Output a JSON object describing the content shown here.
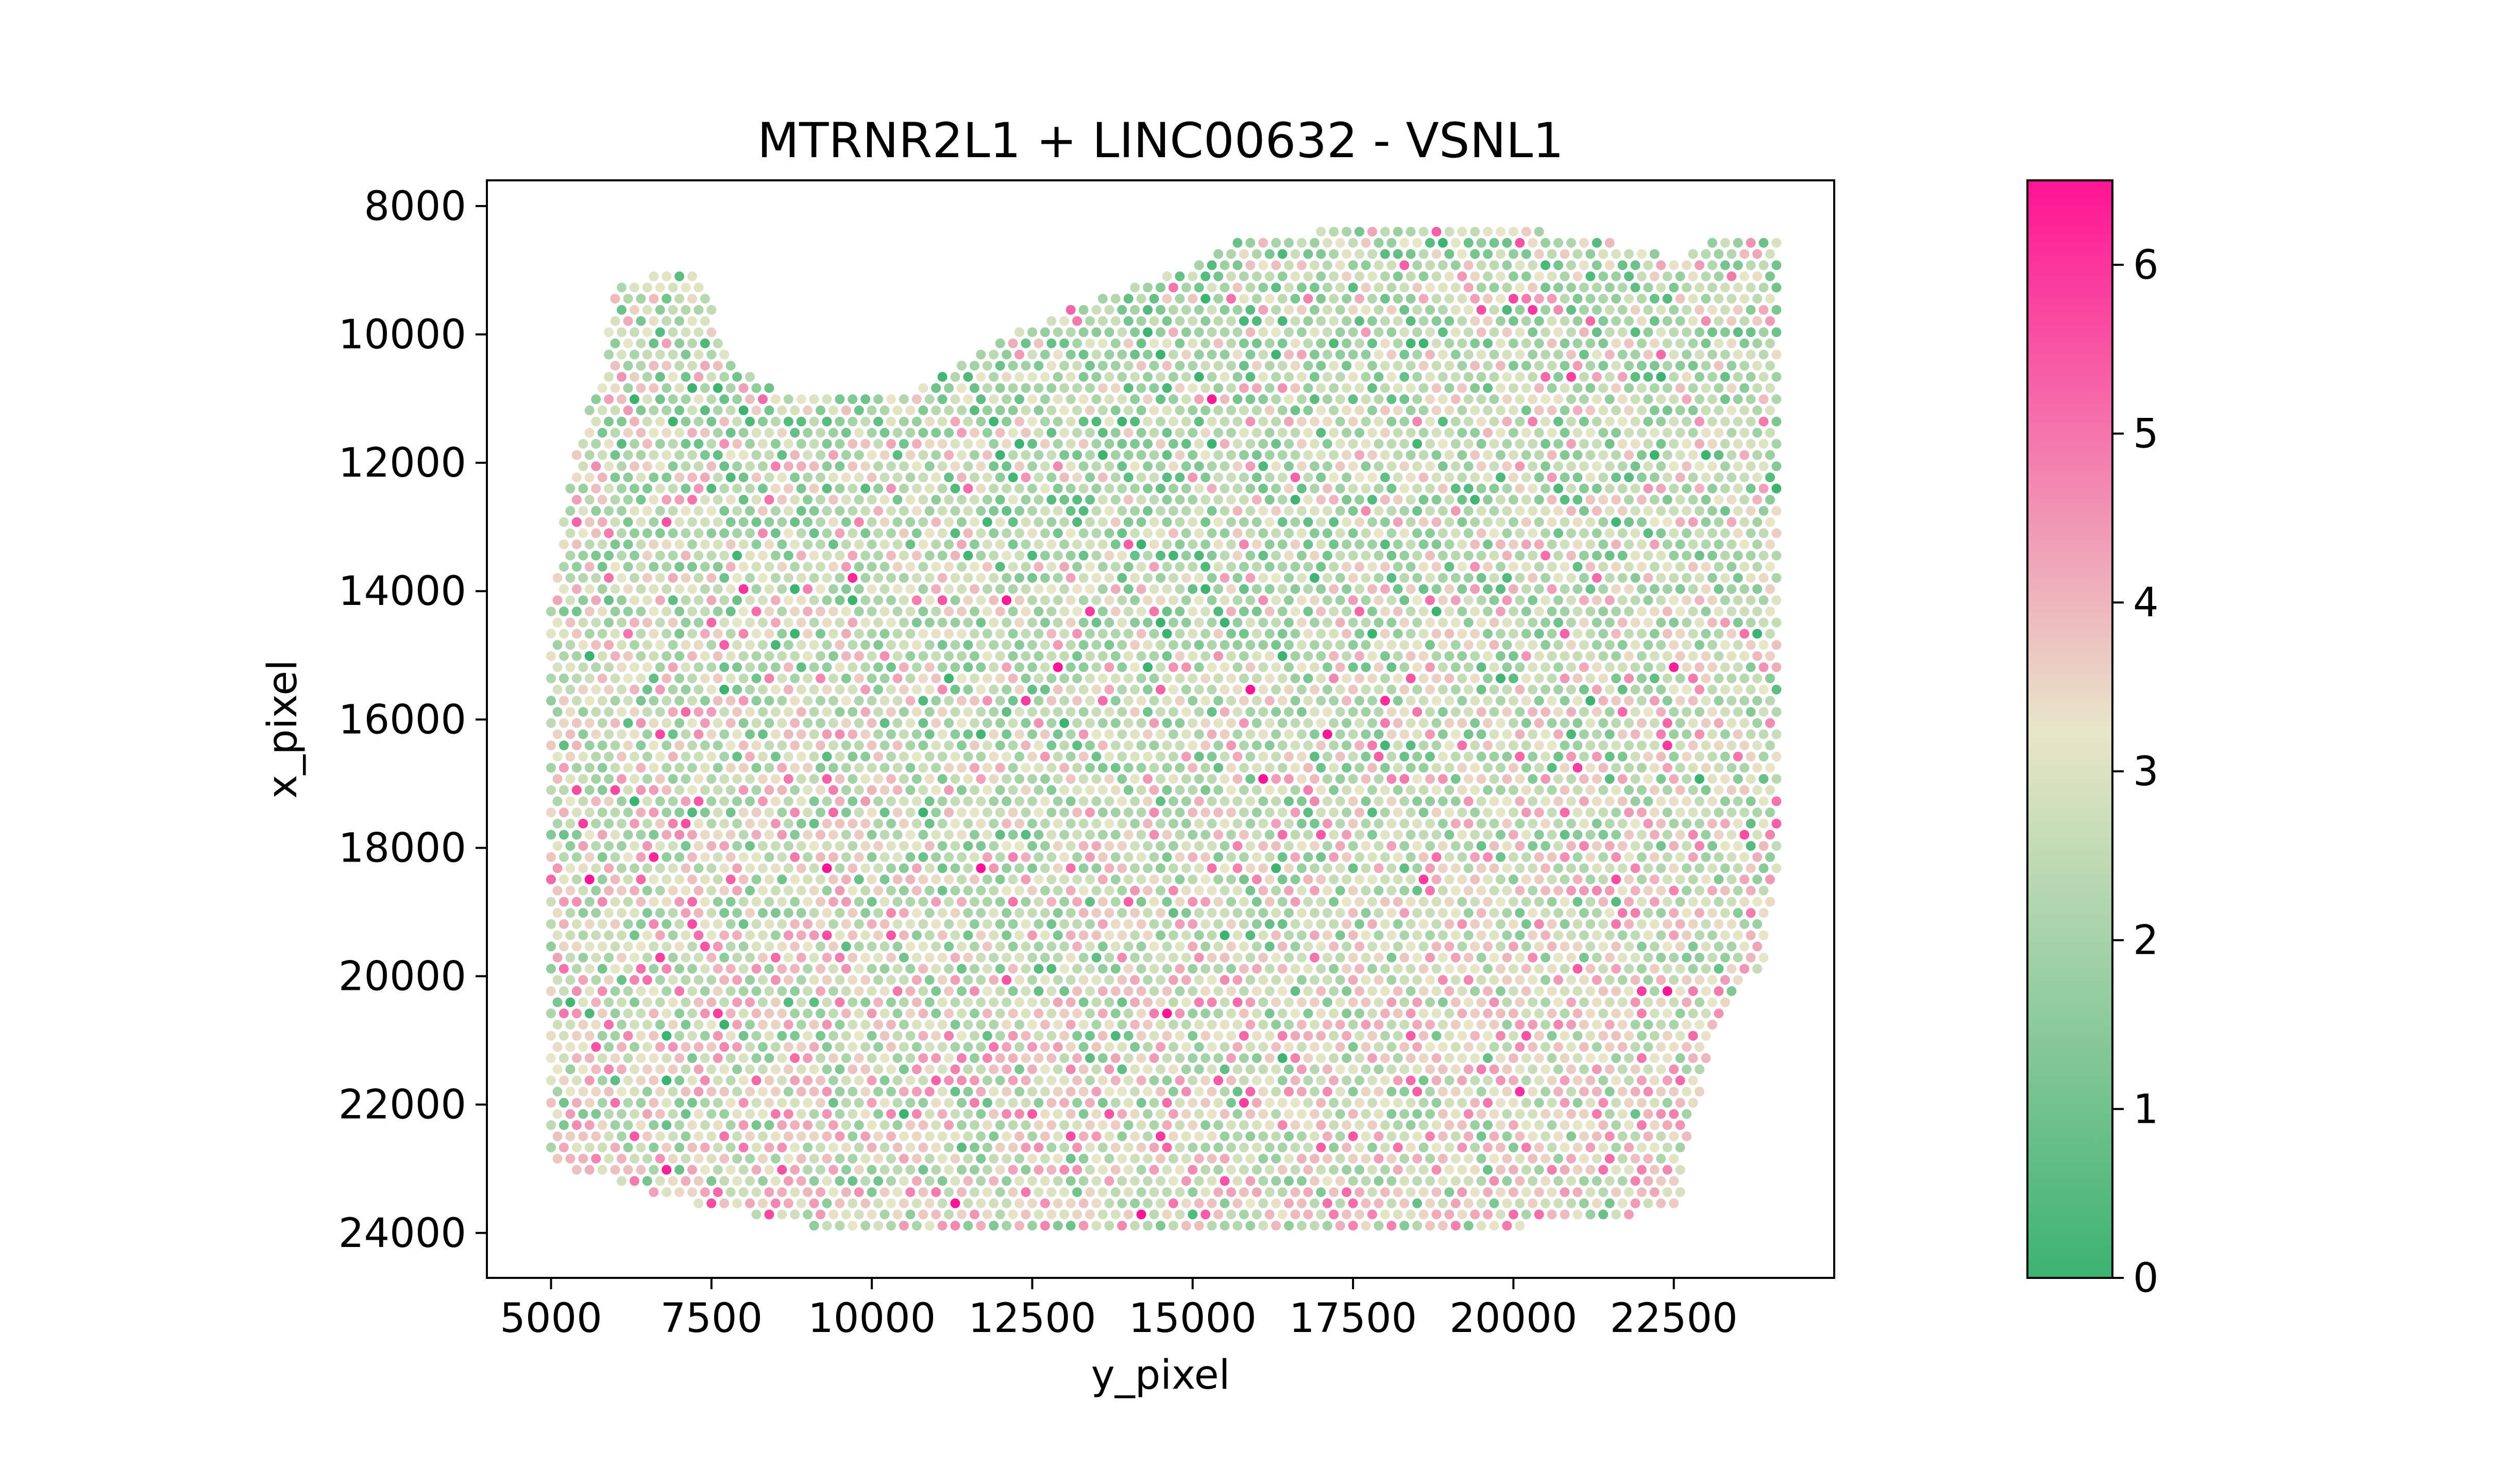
{
  "chart_data": {
    "type": "scatter",
    "title": "MTRNR2L1 + LINC00632 - VSNL1",
    "xlabel": "y_pixel",
    "ylabel": "x_pixel",
    "xlim": [
      4000,
      25000
    ],
    "ylim": [
      24700,
      7600
    ],
    "y_inverted": true,
    "xticks": [
      5000,
      7500,
      10000,
      12500,
      15000,
      17500,
      20000,
      22500
    ],
    "xtick_labels": [
      "5000",
      "7500",
      "10000",
      "12500",
      "15000",
      "17500",
      "20000",
      "22500"
    ],
    "yticks": [
      8000,
      10000,
      12000,
      14000,
      16000,
      18000,
      20000,
      22000,
      24000
    ],
    "ytick_labels": [
      "8000",
      "10000",
      "12000",
      "14000",
      "16000",
      "18000",
      "20000",
      "22000",
      "24000"
    ],
    "grid": false,
    "colorbar": {
      "min": 0,
      "max": 6.5,
      "ticks": [
        0,
        1,
        2,
        3,
        4,
        5,
        6
      ],
      "tick_labels": [
        "0",
        "1",
        "2",
        "3",
        "4",
        "5",
        "6"
      ],
      "colors": [
        "#3cb371",
        "#e8e6c9",
        "#ff1493"
      ]
    },
    "tissue_spots": {
      "spacing_x": 200,
      "spacing_y": 174,
      "x_range": [
        5000,
        24100
      ],
      "y_range": [
        8400,
        23900
      ],
      "boundary_top": [
        [
          5000,
          14300
        ],
        [
          5300,
          12100
        ],
        [
          5800,
          10500
        ],
        [
          6000,
          9300
        ],
        [
          6600,
          9050
        ],
        [
          7300,
          9100
        ],
        [
          7700,
          10100
        ],
        [
          8200,
          10800
        ],
        [
          9000,
          10900
        ],
        [
          9600,
          11000
        ],
        [
          10200,
          11000
        ],
        [
          11000,
          10700
        ],
        [
          12000,
          10100
        ],
        [
          13000,
          9600
        ],
        [
          14000,
          9300
        ],
        [
          15000,
          8900
        ],
        [
          15700,
          8550
        ],
        [
          17000,
          8400
        ],
        [
          18500,
          8350
        ],
        [
          20000,
          8350
        ],
        [
          21000,
          8450
        ],
        [
          22000,
          8650
        ],
        [
          22600,
          8800
        ],
        [
          23000,
          8500
        ],
        [
          24100,
          8550
        ]
      ],
      "boundary_bottom": [
        [
          5000,
          22900
        ],
        [
          6000,
          23200
        ],
        [
          7000,
          23500
        ],
        [
          8000,
          23700
        ],
        [
          9000,
          23900
        ],
        [
          10000,
          23950
        ],
        [
          12000,
          23950
        ],
        [
          14000,
          23950
        ],
        [
          16000,
          23950
        ],
        [
          18000,
          23950
        ],
        [
          20000,
          23900
        ],
        [
          21000,
          23800
        ],
        [
          22000,
          23700
        ],
        [
          22600,
          23600
        ],
        [
          22700,
          22700
        ],
        [
          23200,
          20600
        ],
        [
          23900,
          19800
        ],
        [
          24100,
          18500
        ]
      ],
      "value_mean": 2.9,
      "value_range": [
        0,
        6.5
      ]
    }
  }
}
